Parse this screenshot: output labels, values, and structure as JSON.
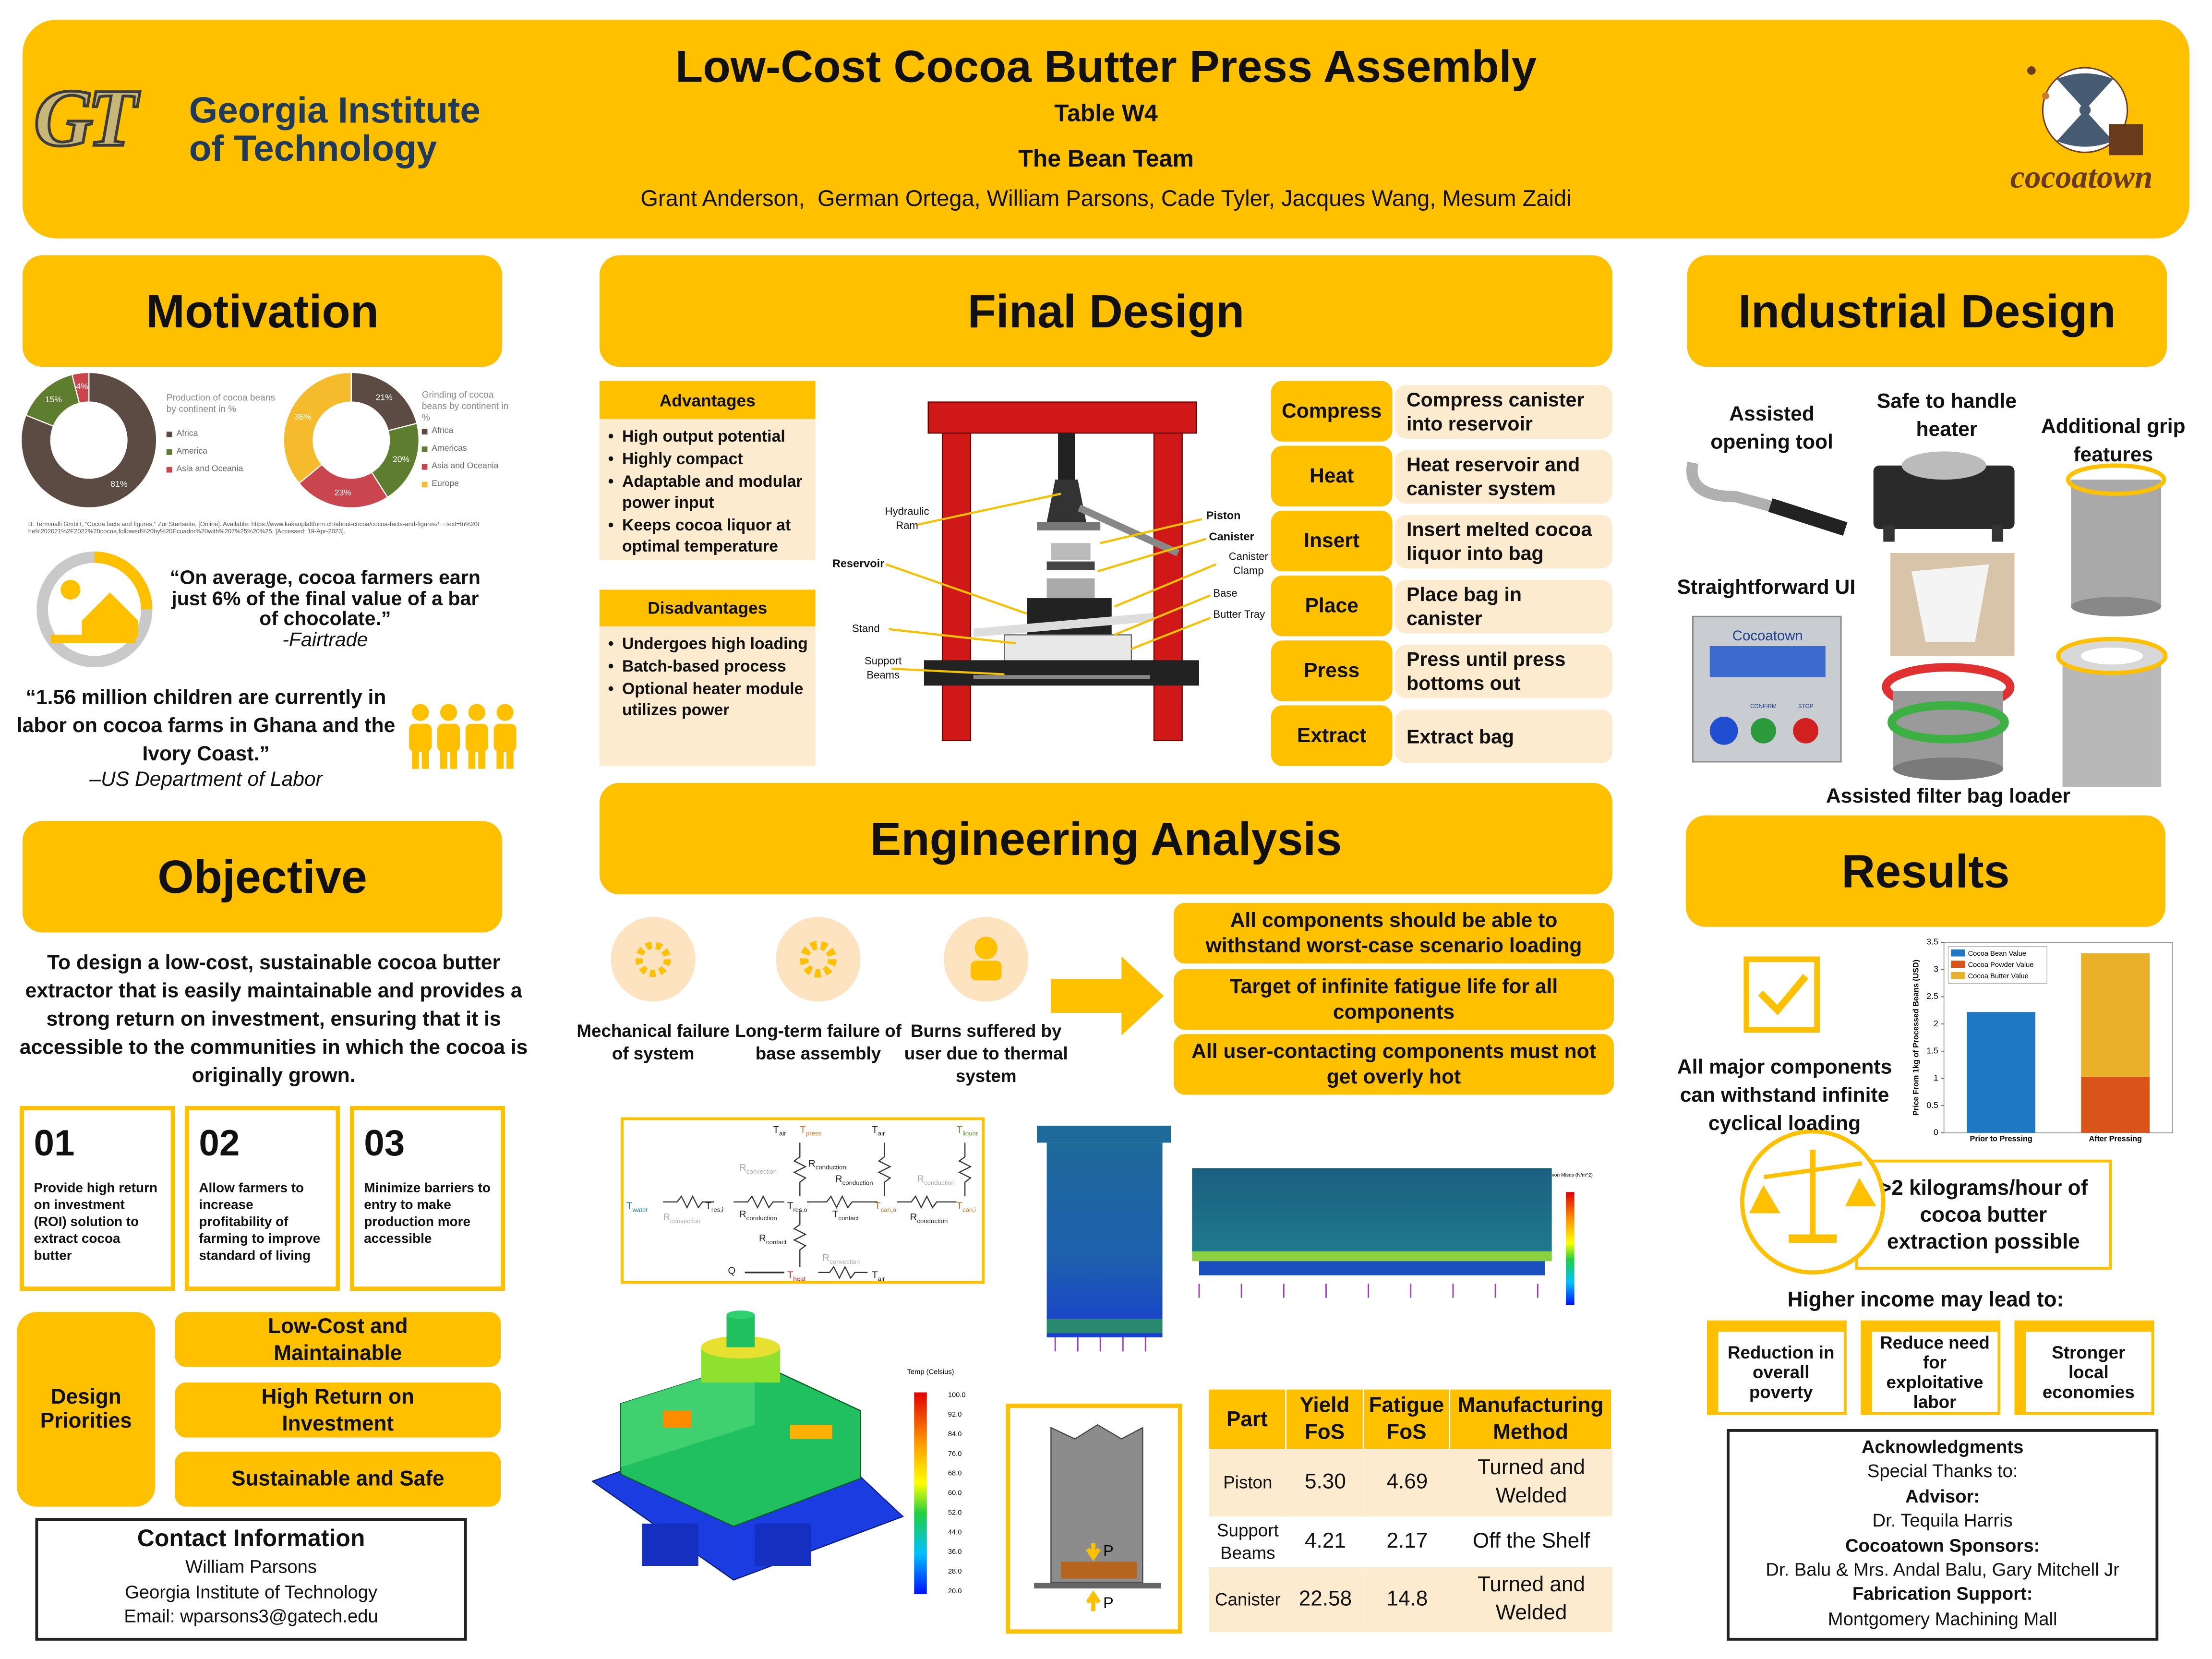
{
  "header": {
    "title": "Low-Cost Cocoa Butter Press Assembly",
    "table": "Table W4",
    "team": "The Bean Team",
    "authors": "Grant Anderson,  German Ortega, William Parsons, Cade Tyler, Jacques Wang, Mesum Zaidi",
    "left_logo": {
      "mark": "GT",
      "lines": [
        "Georgia Institute",
        "of Technology"
      ]
    },
    "right_logo": "cocoatown"
  },
  "motivation": {
    "heading": "Motivation",
    "citation": "B. Terminalli GmbH, \"Cocoa facts and figures,\" Zur Startseite, [Online]. Available: https://www.kakaoplattform.ch/about-cocoa/cocoa-facts-and-figures#:~:text=In%20the%202021%2F2022%20cocoa,followed%20by%20Ecuador%20with%207%25%20%25. [Accessed: 19-Apr-2023].",
    "quote1": {
      "text": "“On average, cocoa farmers earn just 6% of the final value of a bar of chocolate.”",
      "source": "-Fairtrade"
    },
    "quote2": {
      "text": "“1.56 million children are currently in labor on cocoa farms in Ghana and the Ivory Coast.”",
      "source": "–US Department of Labor"
    }
  },
  "chart_data": [
    {
      "type": "donut",
      "title": "Production of cocoa beans by continent in %",
      "categories": [
        "Africa",
        "America",
        "Asia and Oceania"
      ],
      "values": [
        81,
        15,
        4
      ],
      "value_labels": [
        "81%",
        "15%",
        "4%"
      ],
      "colors": [
        "#5b4b43",
        "#5e7d2f",
        "#c9464f"
      ]
    },
    {
      "type": "donut",
      "title": "Grinding of cocoa beans by continent in %",
      "categories": [
        "Africa",
        "Americas",
        "Asia and Oceania",
        "Europe"
      ],
      "values": [
        21,
        20,
        23,
        36
      ],
      "value_labels": [
        "21%",
        "20%",
        "23%",
        "36%"
      ],
      "colors": [
        "#5b4b43",
        "#5e7d2f",
        "#c9464f",
        "#f5bb2d"
      ]
    },
    {
      "type": "bar",
      "stacked": true,
      "ylabel": "Price From 1kg of Processed Beans (USD)",
      "categories": [
        "Prior to Pressing",
        "After Pressing"
      ],
      "series": [
        {
          "name": "Cocoa Bean Value",
          "color": "#1f78c1",
          "values": [
            2.22,
            null
          ]
        },
        {
          "name": "Cocoa Powder Value",
          "color": "#d9541b",
          "values": [
            null,
            1.03
          ]
        },
        {
          "name": "Cocoa Butter Value",
          "color": "#ebb02a",
          "values": [
            null,
            2.27
          ]
        }
      ],
      "ylim": [
        0,
        3.5
      ],
      "yticks": [
        0,
        0.5,
        1,
        1.5,
        2,
        2.5,
        3,
        3.5
      ],
      "legend": "upper left"
    }
  ],
  "objective": {
    "heading": "Objective",
    "text": "To design a low-cost, sustainable cocoa butter extractor that is easily maintainable and provides a strong return on investment, ensuring that it is accessible to the communities in which the cocoa is originally grown.",
    "goals": [
      {
        "number": "01",
        "text": "Provide high return on investment (ROI) solution to extract cocoa butter"
      },
      {
        "number": "02",
        "text": "Allow farmers to increase profitability of farming to improve standard of living"
      },
      {
        "number": "03",
        "text": "Minimize barriers to entry to make production more accessible"
      }
    ],
    "design_priorities": {
      "label": "Design Priorities",
      "items": [
        "Low-Cost and Maintainable",
        "High Return on Investment",
        "Sustainable and Safe"
      ]
    }
  },
  "contact": {
    "heading": "Contact Information",
    "lines": [
      "William Parsons",
      "Georgia Institute of Technology",
      "Email: wparsons3@gatech.edu"
    ]
  },
  "final_design": {
    "heading": "Final Design",
    "advantages": {
      "heading": "Advantages",
      "items": [
        "High output potential",
        "Highly compact",
        "Adaptable and modular power input",
        "Keeps cocoa liquor at optimal temperature"
      ]
    },
    "disadvantages": {
      "heading": "Disadvantages",
      "items": [
        "Undergoes high loading",
        "Batch-based process",
        "Optional heater module utilizes power"
      ]
    },
    "labels": [
      "Hydraulic Ram",
      "Reservoir",
      "Stand",
      "Support Beams",
      "Piston",
      "Canister",
      "Canister Clamp",
      "Base",
      "Butter Tray"
    ],
    "steps": [
      {
        "name": "Compress",
        "text": "Compress canister into reservoir"
      },
      {
        "name": "Heat",
        "text": "Heat reservoir and canister system"
      },
      {
        "name": "Insert",
        "text": "Insert melted cocoa liquor into bag"
      },
      {
        "name": "Place",
        "text": "Place bag in canister"
      },
      {
        "name": "Press",
        "text": "Press until press bottoms out"
      },
      {
        "name": "Extract",
        "text": "Extract bag"
      }
    ]
  },
  "engineering": {
    "heading": "Engineering Analysis",
    "risks": [
      "Mechanical failure of system",
      "Long-term failure of base assembly",
      "Burns suffered by user due to thermal system"
    ],
    "requirements": [
      "All components should be able to withstand worst-case scenario loading",
      "Target of infinite fatigue life for all components",
      "All user-contacting components must not get overly hot"
    ],
    "thermal": [
      {
        "t": "T",
        "sub": "air",
        "color": "#222222"
      },
      {
        "t": "T",
        "sub": "press",
        "color": "#e07020"
      },
      {
        "t": "T",
        "sub": "air",
        "color": "#222222"
      },
      {
        "t": "T",
        "sub": "liquor",
        "color": "#5a9a30"
      },
      {
        "t": "R",
        "sub": "convection",
        "color": "#aaaaaa"
      },
      {
        "t": "R",
        "sub": "conduction",
        "color": "#222222"
      },
      {
        "t": "R",
        "sub": "conduction",
        "color": "#222222"
      },
      {
        "t": "R",
        "sub": "conduction",
        "color": "#aaaaaa"
      },
      {
        "t": "T",
        "sub": "water",
        "color": "#1a7a8a"
      },
      {
        "t": "R",
        "sub": "convection",
        "color": "#aaaaaa"
      },
      {
        "t": "T",
        "sub": "res,i",
        "color": "#222222"
      },
      {
        "t": "R",
        "sub": "conduction",
        "color": "#222222"
      },
      {
        "t": "T",
        "sub": "res,o",
        "color": "#222222"
      },
      {
        "t": "T",
        "sub": "contact",
        "color": "#222222"
      },
      {
        "t": "T",
        "sub": "can,o",
        "color": "#c07020"
      },
      {
        "t": "R",
        "sub": "conduction",
        "color": "#222222"
      },
      {
        "t": "T",
        "sub": "can,i",
        "color": "#c07020"
      },
      {
        "t": "R",
        "sub": "contact",
        "color": "#222222"
      },
      {
        "t": "R",
        "sub": "convection",
        "color": "#aaaaaa"
      },
      {
        "t": "Q",
        "color": "#222222"
      },
      {
        "t": "T",
        "sub": "heat",
        "color": "#d02020"
      },
      {
        "t": "T",
        "sub": "air",
        "color": "#222222"
      }
    ],
    "stress_legend_title": "von Mises (N/m^2)",
    "temp_legend": {
      "title": "Temp (Celsius)",
      "ticks": [
        "100.0",
        "92.0",
        "84.0",
        "76.0",
        "68.0",
        "60.0",
        "52.0",
        "44.0",
        "36.0",
        "28.0",
        "20.0"
      ]
    },
    "load_labels": [
      "P",
      "P"
    ],
    "table": {
      "header": [
        "Part",
        "Yield FoS",
        "Fatigue FoS",
        "Manufacturing Method"
      ],
      "rows": [
        [
          "Piston",
          "5.30",
          "4.69",
          "Turned and Welded"
        ],
        [
          "Support Beams",
          "4.21",
          "2.17",
          "Off the Shelf"
        ],
        [
          "Canister",
          "22.58",
          "14.8",
          "Turned and Welded"
        ]
      ]
    }
  },
  "industrial_design": {
    "heading": "Industrial Design",
    "features": [
      "Assisted opening tool",
      "Safe to handle heater",
      "Additional grip features",
      "Straightforward UI",
      "Assisted filter bag loader"
    ],
    "ui": {
      "brand": "Cocoatown",
      "buttons": [
        "CONFIRM",
        "STOP"
      ]
    }
  },
  "results": {
    "heading": "Results",
    "loading": "All major components can withstand infinite cyclical loading",
    "throughput": ">2 kilograms/hour of cocoa butter extraction possible",
    "income_heading": "Higher income may lead to:",
    "impacts": [
      "Reduction in overall poverty",
      "Reduce need for exploitative labor",
      "Stronger local economies"
    ]
  },
  "acknowledgments": {
    "lines": [
      {
        "text": "Acknowledgments",
        "bold": true
      },
      {
        "text": "Special Thanks to:"
      },
      {
        "text": "Advisor:",
        "bold": true
      },
      {
        "text": "Dr. Tequila Harris"
      },
      {
        "text": "Cocoatown Sponsors:",
        "bold": true
      },
      {
        "text": "Dr. Balu & Mrs. Andal Balu, Gary Mitchell Jr"
      },
      {
        "text": "Fabrication Support:",
        "bold": true
      },
      {
        "text": "Montgomery Machining Mall"
      }
    ]
  }
}
